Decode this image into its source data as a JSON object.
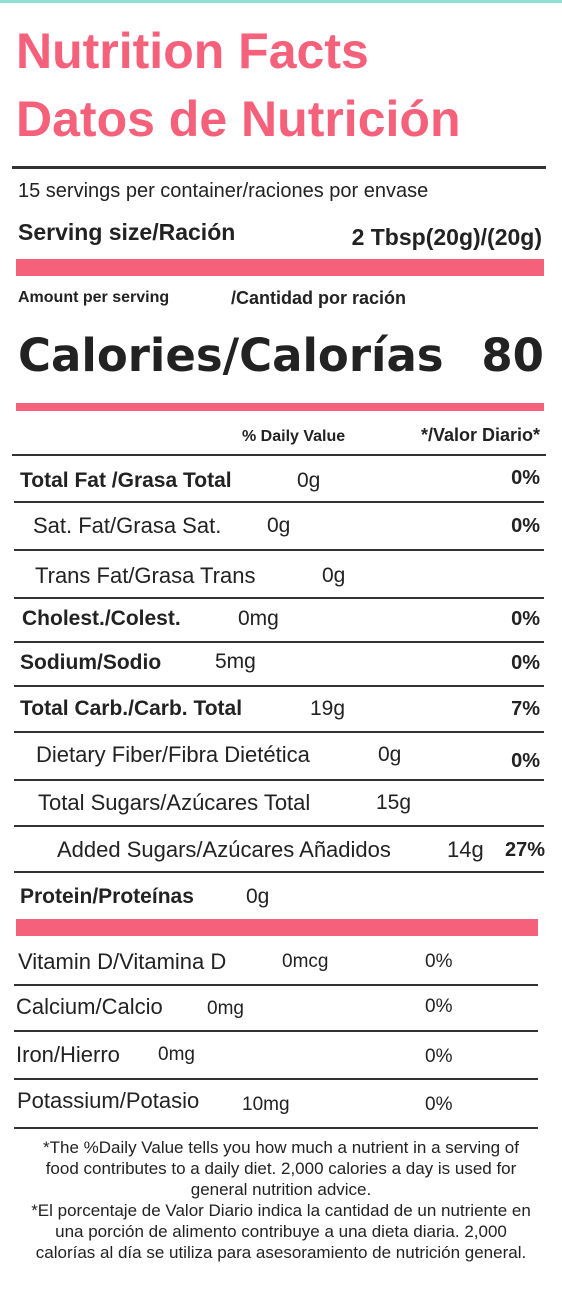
{
  "header": {
    "title_en": "Nutrition Facts",
    "title_es": "Datos de Nutrición",
    "servings": "15 servings per container/raciones por envase",
    "serving_size_label": "Serving size/Ración",
    "serving_size_value": "2 Tbsp(20g)/(20g)",
    "amount_per_serving": "Amount per serving",
    "amount_per_serving_es": "/Cantidad por ración",
    "calories_label": "Calories/Calorías",
    "calories": 80,
    "daily_value_header": "% Daily Value",
    "daily_value_header_es": "*/Valor Diario*"
  },
  "nutrients": [
    {
      "name": "Total Fat /Grasa Total",
      "amount": "0g",
      "daily_value": "0%"
    },
    {
      "name": "Sat. Fat/Grasa Sat.",
      "amount": "0g",
      "daily_value": "0%"
    },
    {
      "name": "Trans Fat/Grasa Trans",
      "amount": "0g"
    },
    {
      "name": "Cholest./Colest.",
      "amount": "0mg",
      "daily_value": "0%"
    },
    {
      "name": "Sodium/Sodio",
      "amount": "5mg",
      "daily_value": "0%"
    },
    {
      "name": "Total Carb./Carb. Total",
      "amount": "19g",
      "daily_value": "7%"
    },
    {
      "name": "Dietary Fiber/Fibra Dietética",
      "amount": "0g",
      "daily_value": "0%"
    },
    {
      "name": "Total Sugars/Azúcares Total",
      "amount": "15g"
    },
    {
      "name": "Added Sugars/Azúcares Añadidos",
      "amount": "14g",
      "daily_value": "27%"
    },
    {
      "name": "Protein/Proteínas",
      "amount": "0g"
    }
  ],
  "vitamins": [
    {
      "name": "Vitamin D/Vitamina D",
      "amount": "0mcg",
      "daily_value": "0%"
    },
    {
      "name": "Calcium/Calcio",
      "amount": "0mg",
      "daily_value": "0%"
    },
    {
      "name": "Iron/Hierro",
      "amount": "0mg",
      "daily_value": "0%"
    },
    {
      "name": "Potassium/Potasio",
      "amount": "10mg",
      "daily_value": "0%"
    }
  ],
  "footnote": [
    "*The %Daily Value tells you how much a nutrient in a serving of food contributes to a daily diet. 2,000 calories a day is used for general nutrition advice.",
    "*El porcentaje de Valor Diario indica la cantidad de un nutriente en una porción de alimento contribuye a una dieta diaria. 2,000 calorías  al  día se utiliza para asesoramiento de nutrición general."
  ]
}
